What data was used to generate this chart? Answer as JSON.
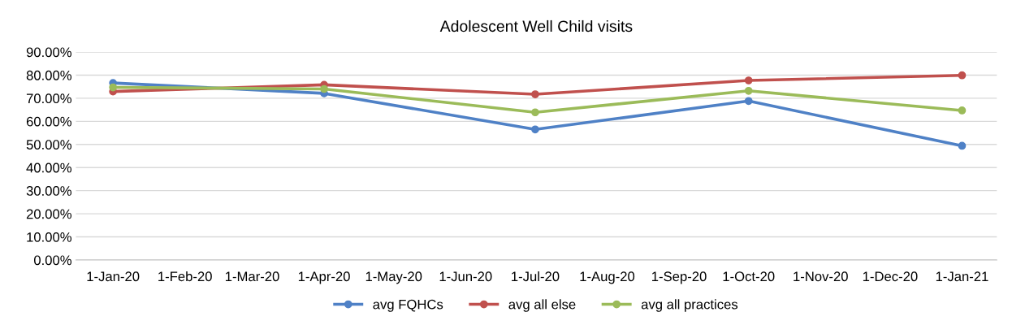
{
  "chart_data": {
    "type": "line",
    "title": "Adolescent Well Child visits",
    "x": [
      "2020-01-01",
      "2020-04-01",
      "2020-07-01",
      "2020-10-01",
      "2021-01-01"
    ],
    "series": [
      {
        "name": "avg FQHCs",
        "color": "#4f81c6",
        "values": [
          76.6,
          72.1,
          56.5,
          68.8,
          49.4
        ]
      },
      {
        "name": "avg all else",
        "color": "#c0504d",
        "values": [
          72.9,
          75.8,
          71.7,
          77.7,
          79.9
        ]
      },
      {
        "name": "avg all practices",
        "color": "#9bbb59",
        "values": [
          74.7,
          74.0,
          63.9,
          73.2,
          64.7
        ]
      }
    ],
    "xlim": [
      "2019-12-16",
      "2021-01-16"
    ],
    "xticks": [
      {
        "value": "2020-01-01",
        "label": "1-Jan-20"
      },
      {
        "value": "2020-02-01",
        "label": "1-Feb-20"
      },
      {
        "value": "2020-03-01",
        "label": "1-Mar-20"
      },
      {
        "value": "2020-04-01",
        "label": "1-Apr-20"
      },
      {
        "value": "2020-05-01",
        "label": "1-May-20"
      },
      {
        "value": "2020-06-01",
        "label": "1-Jun-20"
      },
      {
        "value": "2020-07-01",
        "label": "1-Jul-20"
      },
      {
        "value": "2020-08-01",
        "label": "1-Aug-20"
      },
      {
        "value": "2020-09-01",
        "label": "1-Sep-20"
      },
      {
        "value": "2020-10-01",
        "label": "1-Oct-20"
      },
      {
        "value": "2020-11-01",
        "label": "1-Nov-20"
      },
      {
        "value": "2020-12-01",
        "label": "1-Dec-20"
      },
      {
        "value": "2021-01-01",
        "label": "1-Jan-21"
      }
    ],
    "ylim": [
      0,
      90
    ],
    "yticks": [
      {
        "value": 0,
        "label": "0.00%"
      },
      {
        "value": 10,
        "label": "10.00%"
      },
      {
        "value": 20,
        "label": "20.00%"
      },
      {
        "value": 30,
        "label": "30.00%"
      },
      {
        "value": 40,
        "label": "40.00%"
      },
      {
        "value": 50,
        "label": "50.00%"
      },
      {
        "value": 60,
        "label": "60.00%"
      },
      {
        "value": 70,
        "label": "70.00%"
      },
      {
        "value": 80,
        "label": "80.00%"
      },
      {
        "value": 90,
        "label": "90.00%"
      }
    ],
    "grid": "y",
    "legend": "bottom",
    "marker": "circle",
    "line_style": "solid"
  }
}
